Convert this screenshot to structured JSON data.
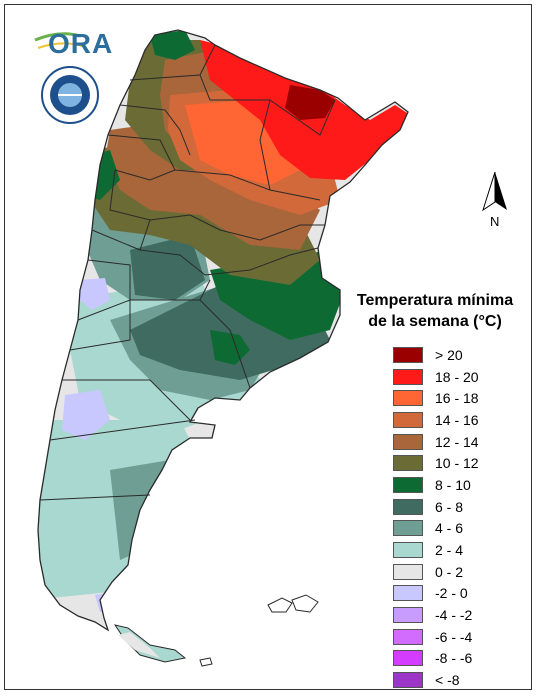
{
  "logo": {
    "text": "ORA"
  },
  "seal": {
    "text": "SERVICIO METEOROLÓGICO NACIONAL · ARGENTINA"
  },
  "legend": {
    "title_line1": "Temperatura mínima",
    "title_line2": "de la semana (°C)",
    "items": [
      {
        "label": "> 20",
        "color": "#9a0000"
      },
      {
        "label": "18 - 20",
        "color": "#ff1a1a"
      },
      {
        "label": "16 - 18",
        "color": "#ff6633"
      },
      {
        "label": "14 - 16",
        "color": "#d2693a"
      },
      {
        "label": "12 - 14",
        "color": "#a8663a"
      },
      {
        "label": "10 - 12",
        "color": "#6b6b35"
      },
      {
        "label": "8 - 10",
        "color": "#0e6a33"
      },
      {
        "label": "6 - 8",
        "color": "#3f6b60"
      },
      {
        "label": "4 - 6",
        "color": "#6e9e94"
      },
      {
        "label": "2 - 4",
        "color": "#a8d8cf"
      },
      {
        "label": "0 - 2",
        "color": "#e6e6e6"
      },
      {
        "label": "-2 - 0",
        "color": "#c8c8ff"
      },
      {
        "label": "-4 - -2",
        "color": "#c79bff"
      },
      {
        "label": "-6 - -4",
        "color": "#d26bff"
      },
      {
        "label": "-8 - -6",
        "color": "#d43cff"
      },
      {
        "label": "< -8",
        "color": "#9b36c8"
      }
    ]
  },
  "north_arrow": {
    "label": "N"
  }
}
